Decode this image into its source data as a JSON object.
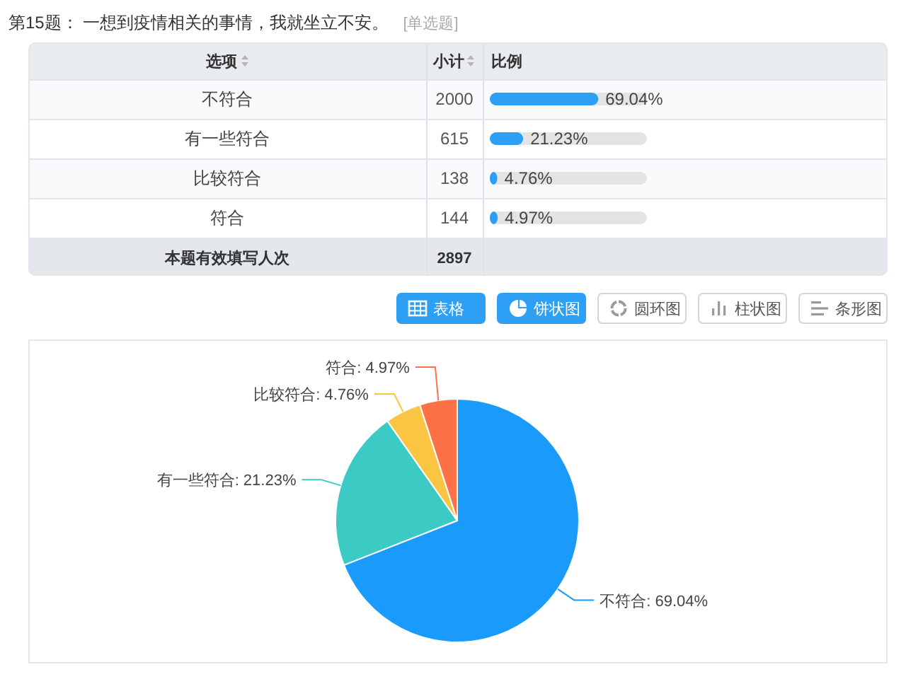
{
  "chart_data": [
    {
      "type": "bar",
      "orientation": "horizontal",
      "title": "第15题： 一想到疫情相关的事情，我就坐立不安。",
      "subtitle": "[单选题]",
      "categories": [
        "不符合",
        "有一些符合",
        "比较符合",
        "符合"
      ],
      "values": [
        69.04,
        21.23,
        4.76,
        4.97
      ],
      "value_labels": [
        "69.04%",
        "21.23%",
        "4.76%",
        "4.97%"
      ],
      "color": "#2d9ff5",
      "tick_labels": "y",
      "annotations": [
        "选项",
        "小计",
        "比例",
        "2000",
        "615",
        "138",
        "144",
        "本题有效填写人次",
        "2897"
      ]
    },
    {
      "type": "pie",
      "categories": [
        "不符合",
        "有一些符合",
        "比较符合",
        "符合"
      ],
      "values": [
        69.04,
        21.23,
        4.76,
        4.97
      ],
      "value_labels": [
        "69.04%",
        "21.23%",
        "4.76%",
        "4.97%"
      ],
      "colors": [
        "#1a9bfc",
        "#3bcbc4",
        "#fbc544",
        "#fc7246"
      ],
      "annotations": [
        "表格",
        "饼状图",
        "圆环图",
        "柱状图",
        "条形图"
      ]
    }
  ]
}
